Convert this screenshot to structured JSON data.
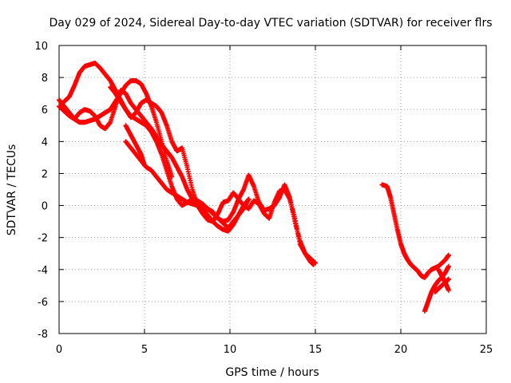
{
  "chart_data": {
    "type": "scatter",
    "title": "Day 029 of 2024, Sidereal Day-to-day VTEC variation (SDTVAR) for receiver flrs",
    "xlabel": "GPS time / hours",
    "ylabel": "SDTVAR / TECUs",
    "xlim": [
      0,
      25
    ],
    "ylim": [
      -8,
      10
    ],
    "xticks": [
      "0",
      "5",
      "10",
      "15",
      "20",
      "25"
    ],
    "yticks": [
      "-8",
      "-6",
      "-4",
      "-2",
      "0",
      "2",
      "4",
      "6",
      "8",
      "10"
    ],
    "grid": true,
    "marker": "plus",
    "color": "#ff0000",
    "series": [
      {
        "x": [
          0.0,
          0.3,
          0.6,
          0.9,
          1.2,
          1.5,
          1.8,
          2.1,
          2.4,
          2.7,
          3.0,
          3.3,
          3.6,
          3.9,
          4.2,
          4.5,
          4.8,
          5.1,
          5.4,
          5.7,
          6.0,
          6.3,
          6.6
        ],
        "y": [
          6.6,
          6.2,
          5.8,
          5.4,
          5.2,
          5.2,
          5.3,
          5.4,
          5.6,
          5.8,
          6.0,
          6.5,
          7.0,
          7.5,
          7.8,
          7.8,
          7.6,
          7.0,
          6.2,
          5.2,
          4.0,
          2.8,
          1.8
        ]
      },
      {
        "x": [
          0.3,
          0.6,
          0.9,
          1.2,
          1.5,
          1.8,
          2.1,
          2.4,
          2.7,
          3.0,
          3.3,
          3.6,
          3.9,
          4.2,
          4.5,
          4.8,
          5.1,
          5.4,
          5.7,
          6.0,
          6.3,
          6.6,
          6.9,
          7.2,
          7.5,
          7.8,
          8.1,
          8.4,
          8.7,
          9.0,
          9.3,
          9.6,
          9.9,
          10.2,
          10.5,
          10.8,
          11.1,
          11.4,
          11.7,
          12.0,
          12.3,
          12.6,
          12.9,
          13.2,
          13.5,
          13.8,
          14.1,
          14.4,
          14.7,
          14.9
        ],
        "y": [
          6.5,
          6.8,
          7.5,
          8.3,
          8.7,
          8.8,
          8.9,
          8.6,
          8.2,
          7.8,
          7.2,
          6.6,
          6.0,
          5.6,
          5.4,
          5.2,
          5.0,
          4.6,
          4.0,
          3.2,
          2.2,
          1.2,
          0.4,
          0.0,
          0.2,
          0.4,
          0.3,
          0.1,
          -0.2,
          -0.5,
          -0.8,
          -1.0,
          -0.9,
          -0.4,
          0.4,
          1.0,
          1.9,
          1.2,
          0.2,
          -0.3,
          -0.2,
          0.0,
          0.5,
          1.3,
          0.5,
          -1.0,
          -2.2,
          -3.0,
          -3.5,
          -3.7
        ]
      },
      {
        "x": [
          0.0,
          0.3,
          0.6,
          0.9,
          1.2,
          1.5,
          1.8,
          2.1,
          2.4,
          2.7,
          3.0,
          3.3,
          3.6,
          3.9,
          4.2,
          4.5,
          4.8,
          5.1,
          5.4,
          5.7,
          6.0,
          6.3,
          6.6,
          6.9,
          7.2,
          7.5,
          7.8,
          8.1,
          8.4,
          8.7,
          9.0,
          9.3,
          9.6,
          9.9,
          10.2,
          10.5,
          10.8,
          11.1
        ],
        "y": [
          6.2,
          5.9,
          5.6,
          5.4,
          5.8,
          6.0,
          5.9,
          5.6,
          5.0,
          4.8,
          5.2,
          6.2,
          7.2,
          7.0,
          6.4,
          6.0,
          5.6,
          5.2,
          4.8,
          4.3,
          3.8,
          3.4,
          3.0,
          2.4,
          1.8,
          1.0,
          0.4,
          0.0,
          -0.2,
          -0.6,
          -1.0,
          -1.3,
          -1.5,
          -1.6,
          -1.2,
          -0.6,
          -0.2,
          0.4
        ]
      },
      {
        "x": [
          3.0,
          3.3,
          3.6,
          3.9,
          4.2,
          4.5,
          4.8,
          5.1,
          5.4,
          5.7,
          6.0,
          6.3,
          6.6,
          6.9,
          7.2,
          7.5,
          7.8,
          8.1,
          8.4,
          8.7,
          9.0,
          9.3,
          9.6,
          9.9,
          10.2,
          10.5,
          10.8,
          11.1,
          11.4,
          11.7,
          12.0,
          12.3,
          12.6,
          12.9,
          13.2,
          13.5,
          13.8,
          14.1,
          14.4,
          14.7,
          15.0
        ],
        "y": [
          7.4,
          7.0,
          6.5,
          6.0,
          5.5,
          5.8,
          6.4,
          6.6,
          6.4,
          6.2,
          5.8,
          5.0,
          4.0,
          3.4,
          3.6,
          2.4,
          1.0,
          0.0,
          -0.5,
          -0.9,
          -1.0,
          -0.5,
          0.2,
          0.3,
          0.8,
          0.4,
          0.0,
          -0.2,
          0.3,
          0.1,
          -0.5,
          -0.8,
          0.2,
          0.9,
          1.0,
          0.4,
          -0.8,
          -2.4,
          -3.0,
          -3.3,
          -3.6
        ]
      },
      {
        "x": [
          3.9,
          4.2,
          4.5,
          4.8,
          5.1,
          5.4,
          5.7,
          6.0,
          6.3,
          6.6,
          6.9,
          7.2,
          7.5,
          7.8,
          8.1,
          8.4,
          8.7,
          9.0,
          9.3,
          9.6,
          9.9,
          10.2,
          10.5,
          10.8,
          11.1
        ],
        "y": [
          4.0,
          3.6,
          3.2,
          2.8,
          2.4,
          2.2,
          1.8,
          1.4,
          1.0,
          0.8,
          0.6,
          0.4,
          0.2,
          0.1,
          0.0,
          -0.1,
          -0.2,
          -0.4,
          -0.8,
          -1.1,
          -1.4,
          -1.0,
          -0.6,
          0.0,
          0.4
        ]
      },
      {
        "x": [
          3.9,
          4.2,
          4.5,
          4.8,
          5.0
        ],
        "y": [
          5.0,
          4.4,
          3.8,
          3.2,
          2.5
        ]
      },
      {
        "x": [
          18.9,
          19.2,
          19.4,
          19.6,
          19.8,
          20.0,
          20.2,
          20.4,
          20.6,
          20.8,
          21.0,
          21.2,
          21.4,
          21.6,
          21.8,
          22.0,
          22.2,
          22.4,
          22.6,
          22.8
        ],
        "y": [
          1.3,
          1.2,
          0.5,
          -0.5,
          -1.5,
          -2.4,
          -3.0,
          -3.4,
          -3.7,
          -3.9,
          -4.1,
          -4.4,
          -4.5,
          -4.2,
          -4.0,
          -3.9,
          -3.8,
          -3.6,
          -3.4,
          -3.1
        ]
      },
      {
        "x": [
          21.4,
          21.6,
          21.8,
          22.0,
          22.2,
          22.4,
          22.6,
          22.8
        ],
        "y": [
          -6.6,
          -6.0,
          -5.4,
          -5.0,
          -4.7,
          -4.5,
          -4.2,
          -3.8
        ]
      },
      {
        "x": [
          22.0,
          22.2,
          22.4,
          22.6,
          22.8
        ],
        "y": [
          -5.4,
          -5.2,
          -5.0,
          -4.8,
          -4.6
        ]
      },
      {
        "x": [
          22.2,
          22.4,
          22.6,
          22.8
        ],
        "y": [
          -4.0,
          -4.4,
          -4.8,
          -5.3
        ]
      }
    ]
  }
}
